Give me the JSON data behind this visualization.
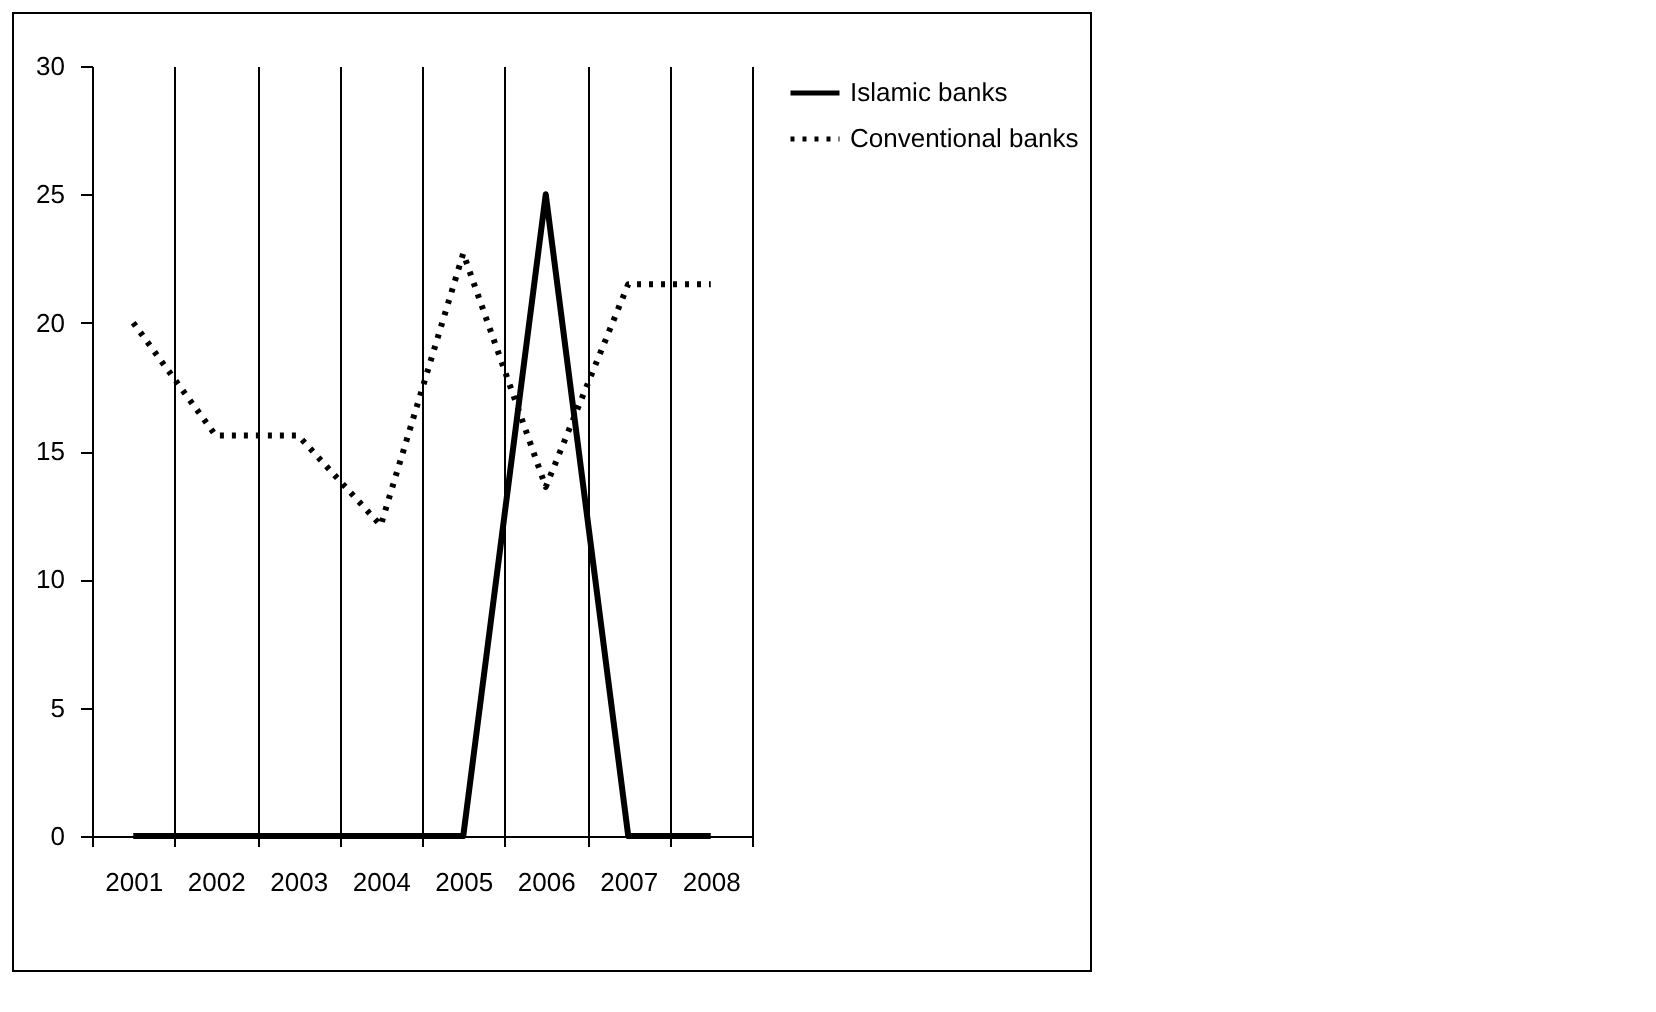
{
  "chart_data": {
    "type": "line",
    "categories": [
      "2001",
      "2002",
      "2003",
      "2004",
      "2005",
      "2006",
      "2007",
      "2008"
    ],
    "series": [
      {
        "name": "Islamic banks",
        "color": "#000000",
        "line_style": "solid",
        "values": [
          0,
          0,
          0,
          0,
          0,
          25,
          0,
          0
        ]
      },
      {
        "name": "Conventional banks",
        "color": "#000000",
        "line_style": "dotted",
        "values": [
          20,
          15.6,
          15.6,
          12.1,
          22.7,
          13.6,
          21.5,
          21.5
        ]
      }
    ],
    "ylim": [
      0,
      30
    ],
    "yticks": [
      0,
      5,
      10,
      15,
      20,
      25,
      30
    ],
    "grid": "x",
    "legend": "right"
  }
}
